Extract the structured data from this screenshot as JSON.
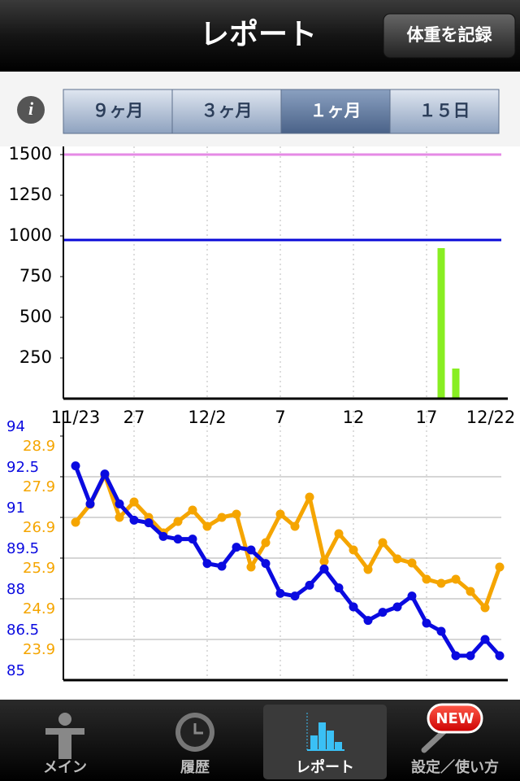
{
  "header": {
    "title": "レポート",
    "button": "体重を記録"
  },
  "segments": {
    "items": [
      "９ヶ月",
      "３ヶ月",
      "１ヶ月",
      "１５日"
    ],
    "selected": 2
  },
  "chart_data": [
    {
      "type": "bar",
      "categories": [
        "11/23",
        null,
        null,
        null,
        "27",
        null,
        null,
        null,
        null,
        "12/2",
        null,
        null,
        null,
        null,
        "7",
        null,
        null,
        null,
        null,
        "12",
        null,
        null,
        null,
        null,
        "17",
        null,
        null,
        null,
        null,
        "12/22"
      ],
      "values": [
        null,
        null,
        null,
        null,
        null,
        null,
        null,
        null,
        null,
        null,
        null,
        null,
        null,
        null,
        null,
        null,
        null,
        null,
        null,
        null,
        null,
        null,
        null,
        null,
        null,
        925,
        185,
        null,
        null,
        null
      ],
      "color": "#88ee22",
      "ylim": [
        0,
        1500
      ],
      "yticks": [
        250,
        500,
        750,
        1000,
        1250,
        1500
      ],
      "reference_lines": [
        {
          "value": 1500,
          "color": "#e58ae5"
        },
        {
          "value": 975,
          "color": "#0a0ad8"
        }
      ]
    },
    {
      "type": "line",
      "series": [
        {
          "color": "#0a0ae0",
          "values": [
            92.9,
            91.5,
            92.6,
            91.5,
            90.9,
            90.8,
            90.3,
            90.2,
            90.2,
            89.3,
            89.2,
            89.9,
            89.8,
            89.3,
            88.2,
            88.1,
            88.5,
            89.1,
            88.4,
            87.7,
            87.2,
            87.5,
            87.7,
            88.1,
            87.1,
            86.8,
            85.9,
            85.9,
            86.5,
            85.9
          ]
        },
        {
          "color": "#f5a500",
          "axis": "y2",
          "values": [
            26.78,
            27.22,
            27.94,
            26.9,
            27.28,
            26.9,
            26.52,
            26.8,
            27.08,
            26.68,
            26.9,
            26.98,
            25.68,
            26.28,
            26.98,
            26.68,
            27.4,
            25.82,
            26.5,
            26.1,
            25.62,
            26.28,
            25.88,
            25.78,
            25.38,
            25.28,
            25.38,
            25.08,
            24.68,
            25.68
          ]
        }
      ],
      "ylim": [
        85,
        94
      ],
      "yticks": [
        85,
        86.5,
        88,
        89.5,
        91,
        92.5,
        94
      ],
      "y2lim": [
        22.9,
        28.9
      ],
      "y2ticks": [
        23.9,
        24.9,
        25.9,
        26.9,
        27.9,
        28.9
      ]
    }
  ],
  "tabs": {
    "items": [
      "メイン",
      "履歴",
      "レポート",
      "設定／使い方"
    ],
    "selected": 2,
    "badge": "NEW"
  }
}
